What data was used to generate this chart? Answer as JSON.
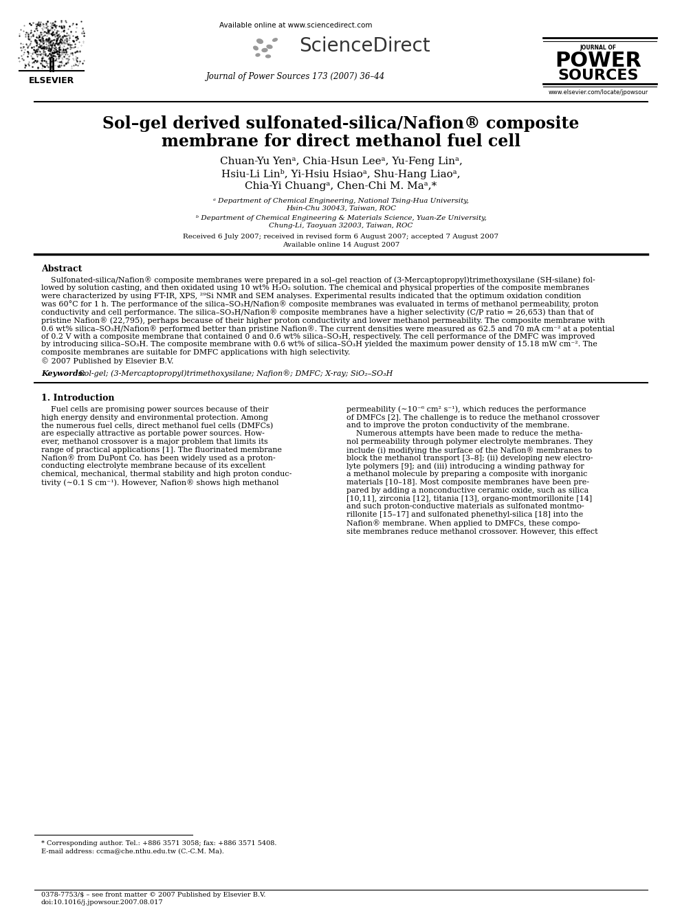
{
  "bg_color": "#ffffff",
  "title_line1": "Sol–gel derived sulfonated-silica/Nafion® composite",
  "title_line2": "membrane for direct methanol fuel cell",
  "authors_line1": "Chuan-Yu Yenᵃ, Chia-Hsun Leeᵃ, Yu-Feng Linᵃ,",
  "authors_line2": "Hsiu-Li Linᵇ, Yi-Hsiu Hsiaoᵃ, Shu-Hang Liaoᵃ,",
  "authors_line3": "Chia-Yi Chuangᵃ, Chen-Chi M. Maᵃ,*",
  "affil_a": "ᵃ Department of Chemical Engineering, National Tsing-Hua University,",
  "affil_a2": "Hsin-Chu 30043, Taiwan, ROC",
  "affil_b": "ᵇ Department of Chemical Engineering & Materials Science, Yuan-Ze University,",
  "affil_b2": "Chung-Li, Taoyuan 32003, Taiwan, ROC",
  "received": "Received 6 July 2007; received in revised form 6 August 2007; accepted 7 August 2007",
  "available": "Available online 14 August 2007",
  "journal_line": "Journal of Power Sources 173 (2007) 36–44",
  "url_top": "Available online at www.sciencedirect.com",
  "url_bottom": "www.elsevier.com/locate/jpowsour",
  "abstract_title": "Abstract",
  "keywords_label": "Keywords:",
  "keywords_text": "  Sol-gel; (3-Mercaptopropyl)trimethoxysilane; Nafion®; DMFC; X-ray; SiO₂–SO₃H",
  "section1_title": "1. Introduction",
  "footnote1": "* Corresponding author. Tel.: +886 3571 3058; fax: +886 3571 5408.",
  "footnote2": "E-mail address: ccma@che.nthu.edu.tw (C.-C.M. Ma).",
  "footnote3": "0378-7753/$ – see front matter © 2007 Published by Elsevier B.V.",
  "footnote4": "doi:10.1016/j.jpowsour.2007.08.017",
  "abstract_lines": [
    "    Sulfonated-silica/Nafion® composite membranes were prepared in a sol–gel reaction of (3-Mercaptopropyl)trimethoxysilane (SH-silane) fol-",
    "lowed by solution casting, and then oxidated using 10 wt% H₂O₂ solution. The chemical and physical properties of the composite membranes",
    "were characterized by using FT-IR, XPS, ²⁹Si NMR and SEM analyses. Experimental results indicated that the optimum oxidation condition",
    "was 60°C for 1 h. The performance of the silica–SO₃H/Nafion® composite membranes was evaluated in terms of methanol permeability, proton",
    "conductivity and cell performance. The silica–SO₃H/Nafion® composite membranes have a higher selectivity (C/P ratio = 26,653) than that of",
    "pristine Nafion® (22,795), perhaps because of their higher proton conductivity and lower methanol permeability. The composite membrane with",
    "0.6 wt% silica–SO₃H/Nafion® performed better than pristine Nafion®. The current densities were measured as 62.5 and 70 mA cm⁻² at a potential",
    "of 0.2 V with a composite membrane that contained 0 and 0.6 wt% silica–SO₃H, respectively. The cell performance of the DMFC was improved",
    "by introducing silica–SO₃H. The composite membrane with 0.6 wt% of silica–SO₃H yielded the maximum power density of 15.18 mW cm⁻². The",
    "composite membranes are suitable for DMFC applications with high selectivity.",
    "© 2007 Published by Elsevier B.V."
  ],
  "intro_col1_lines": [
    "    Fuel cells are promising power sources because of their",
    "high energy density and environmental protection. Among",
    "the numerous fuel cells, direct methanol fuel cells (DMFCs)",
    "are especially attractive as portable power sources. How-",
    "ever, methanol crossover is a major problem that limits its",
    "range of practical applications [1]. The fluorinated membrane",
    "Nafion® from DuPont Co. has been widely used as a proton-",
    "conducting electrolyte membrane because of its excellent",
    "chemical, mechanical, thermal stability and high proton conduc-",
    "tivity (∼0.1 S cm⁻¹). However, Nafion® shows high methanol"
  ],
  "intro_col2_lines": [
    "permeability (∼10⁻⁶ cm² s⁻¹), which reduces the performance",
    "of DMFCs [2]. The challenge is to reduce the methanol crossover",
    "and to improve the proton conductivity of the membrane.",
    "    Numerous attempts have been made to reduce the metha-",
    "nol permeability through polymer electrolyte membranes. They",
    "include (i) modifying the surface of the Nafion® membranes to",
    "block the methanol transport [3–8]; (ii) developing new electro-",
    "lyte polymers [9]; and (iii) introducing a winding pathway for",
    "a methanol molecule by preparing a composite with inorganic",
    "materials [10–18]. Most composite membranes have been pre-",
    "pared by adding a nonconductive ceramic oxide, such as silica",
    "[10,11], zirconia [12], titania [13], organo-montmorillonite [14]",
    "and such proton-conductive materials as sulfonated montmo-",
    "rillonite [15–17] and sulfonated phenethyl-silica [18] into the",
    "Nafion® membrane. When applied to DMFCs, these compo-",
    "site membranes reduce methanol crossover. However, this effect"
  ]
}
